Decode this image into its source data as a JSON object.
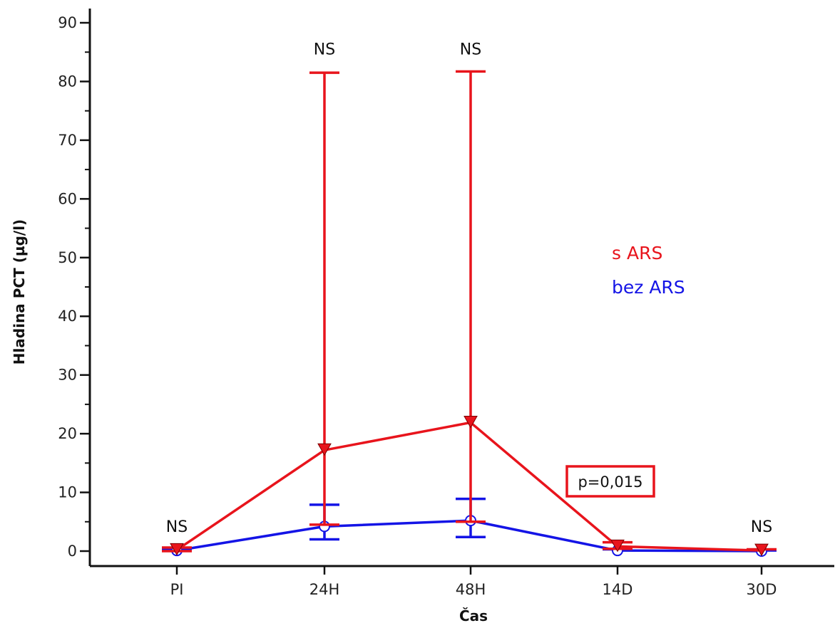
{
  "chart_data": {
    "type": "line",
    "xlabel": "Čas",
    "ylabel": "Hladina PCT (µg/l)",
    "ylim": [
      0,
      90
    ],
    "yticks": [
      0,
      10,
      20,
      30,
      40,
      50,
      60,
      70,
      80,
      90
    ],
    "grid": false,
    "legend_position": "right",
    "categories": [
      "PI",
      "24H",
      "48H",
      "14D",
      "30D"
    ],
    "series": [
      {
        "name": "s ARS",
        "color": "#e8141c",
        "marker": "triangle-down",
        "values": [
          0.2,
          17.2,
          21.9,
          0.8,
          0.1
        ],
        "error_low": [
          0.0,
          4.5,
          5.0,
          0.4,
          0.0
        ],
        "error_high": [
          0.6,
          81.5,
          81.7,
          1.5,
          0.3
        ]
      },
      {
        "name": "bez ARS",
        "color": "#1414e6",
        "marker": "circle",
        "values": [
          0.1,
          4.2,
          5.2,
          0.1,
          0.0
        ],
        "error_low": [
          0.0,
          2.0,
          2.4,
          0.0,
          0.0
        ],
        "error_high": [
          0.3,
          7.9,
          8.9,
          0.3,
          0.1
        ]
      }
    ],
    "annotations": [
      {
        "category": "PI",
        "text": "NS",
        "y": 3.3
      },
      {
        "category": "24H",
        "text": "NS",
        "y": 84.6
      },
      {
        "category": "48H",
        "text": "NS",
        "y": 84.6
      },
      {
        "category": "30D",
        "text": "NS",
        "y": 3.3
      }
    ],
    "p_value_label": "p=0,015"
  }
}
